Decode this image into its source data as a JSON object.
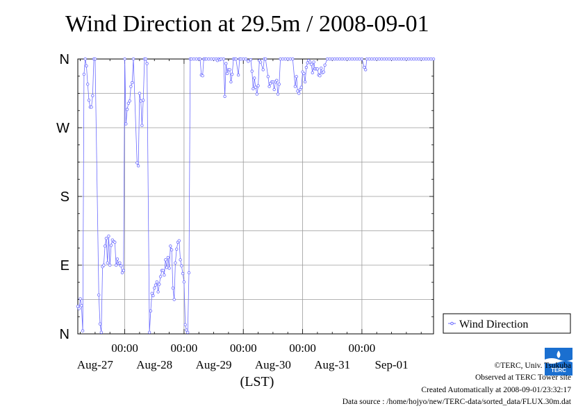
{
  "chart_data": {
    "type": "line",
    "title": "Wind Direction at 29.5m / 2008-09-01",
    "xlabel": "(LST)",
    "ylabel": "",
    "y_ticks": [
      "N",
      "W",
      "S",
      "E",
      "N"
    ],
    "y_tick_values": [
      360,
      270,
      180,
      90,
      0
    ],
    "ylim": [
      0,
      360
    ],
    "xlim": [
      0,
      144
    ],
    "x_time_ticks": [
      "00:00",
      "00:00",
      "00:00",
      "00:00",
      "00:00"
    ],
    "x_time_tick_hours": [
      19,
      43,
      67,
      91,
      115
    ],
    "x_date_labels": [
      "Aug-27",
      "Aug-28",
      "Aug-29",
      "Aug-30",
      "Aug-31",
      "Sep-01"
    ],
    "x_date_label_hours": [
      7,
      31,
      55,
      79,
      103,
      127
    ],
    "grid": true,
    "legend_position": "right",
    "series": [
      {
        "name": "Wind Direction",
        "color": "#6a6aff",
        "x_unit": "hours from start of window (2008-08-26 05:00 LST)",
        "y_unit": "degrees (0=N, 90=E, 180=S, 270=W)",
        "points": [
          [
            0,
            36
          ],
          [
            0.5,
            33
          ],
          [
            1,
            46
          ],
          [
            1.5,
            37
          ],
          [
            2,
            4
          ],
          [
            2.5,
            340
          ],
          [
            3,
            360
          ],
          [
            3.5,
            351
          ],
          [
            4,
            327
          ],
          [
            4.5,
            306
          ],
          [
            5,
            297
          ],
          [
            5.5,
            297
          ],
          [
            6,
            312
          ],
          [
            6.5,
            360
          ],
          [
            7,
            360
          ],
          [
            8.5,
            51
          ],
          [
            9,
            13
          ],
          [
            9.5,
            2
          ],
          [
            10,
            88
          ],
          [
            10.5,
            90
          ],
          [
            11,
            115
          ],
          [
            11.5,
            125
          ],
          [
            12,
            93
          ],
          [
            12.5,
            128
          ],
          [
            13,
            90
          ],
          [
            13.5,
            116
          ],
          [
            14,
            123
          ],
          [
            14.5,
            121
          ],
          [
            15,
            120
          ],
          [
            15.5,
            90
          ],
          [
            16,
            98
          ],
          [
            16.5,
            92
          ],
          [
            17,
            93
          ],
          [
            17.5,
            89
          ],
          [
            18,
            80
          ],
          [
            18.5,
            83
          ],
          [
            19,
            360
          ],
          [
            19.5,
            275
          ],
          [
            20,
            294
          ],
          [
            20.5,
            302
          ],
          [
            21,
            305
          ],
          [
            21.5,
            324
          ],
          [
            22,
            329
          ],
          [
            22.5,
            360
          ],
          [
            24,
            224
          ],
          [
            24.5,
            220
          ],
          [
            25,
            315
          ],
          [
            25.5,
            305
          ],
          [
            26,
            273
          ],
          [
            26.5,
            306
          ],
          [
            27,
            360
          ],
          [
            27.5,
            360
          ],
          [
            28,
            354
          ],
          [
            29,
            2
          ],
          [
            29.5,
            30
          ],
          [
            30,
            53
          ],
          [
            30.5,
            50
          ],
          [
            31,
            60
          ],
          [
            31.5,
            64
          ],
          [
            32,
            68
          ],
          [
            32.5,
            55
          ],
          [
            33,
            65
          ],
          [
            33.5,
            75
          ],
          [
            34,
            83
          ],
          [
            34.5,
            83
          ],
          [
            35,
            77
          ],
          [
            35.5,
            97
          ],
          [
            36,
            87
          ],
          [
            36.5,
            100
          ],
          [
            37,
            86
          ],
          [
            37.5,
            115
          ],
          [
            38,
            110
          ],
          [
            38.5,
            60
          ],
          [
            39,
            45
          ],
          [
            39.5,
            93
          ],
          [
            40,
            111
          ],
          [
            40.5,
            120
          ],
          [
            41,
            122
          ],
          [
            41.5,
            97
          ],
          [
            42,
            89
          ],
          [
            42.5,
            79
          ],
          [
            43,
            68
          ],
          [
            43.5,
            12
          ],
          [
            44,
            5
          ],
          [
            44.5,
            2
          ],
          [
            45,
            80
          ],
          [
            45.5,
            360
          ],
          [
            46,
            360
          ],
          [
            47,
            360
          ],
          [
            48,
            360
          ],
          [
            48.5,
            374
          ],
          [
            49,
            360
          ],
          [
            49.5,
            360
          ],
          [
            50,
            339
          ],
          [
            50.5,
            338
          ],
          [
            51,
            360
          ],
          [
            51.5,
            360
          ],
          [
            52,
            360
          ],
          [
            53,
            360
          ],
          [
            54,
            360
          ],
          [
            55,
            360
          ],
          [
            56,
            360
          ],
          [
            56.5,
            358
          ],
          [
            57,
            360
          ],
          [
            57.5,
            359
          ],
          [
            58,
            360
          ],
          [
            59,
            360
          ],
          [
            59.5,
            311
          ],
          [
            60,
            354
          ],
          [
            60.5,
            341
          ],
          [
            61,
            346
          ],
          [
            61.5,
            346
          ],
          [
            62,
            330
          ],
          [
            62.5,
            340
          ],
          [
            63,
            360
          ],
          [
            63.5,
            360
          ],
          [
            64,
            360
          ],
          [
            65,
            339
          ],
          [
            65.5,
            360
          ],
          [
            66,
            360
          ],
          [
            67,
            360
          ],
          [
            68,
            360
          ],
          [
            69,
            357
          ],
          [
            70,
            359
          ],
          [
            70.5,
            344
          ],
          [
            71,
            321
          ],
          [
            71.5,
            335
          ],
          [
            72,
            323
          ],
          [
            72.5,
            314
          ],
          [
            73,
            325
          ],
          [
            73.5,
            358
          ],
          [
            74,
            356
          ],
          [
            75,
            346
          ],
          [
            75.5,
            360
          ],
          [
            76,
            360
          ],
          [
            77,
            337
          ],
          [
            77.5,
            324
          ],
          [
            78,
            328
          ],
          [
            78.5,
            330
          ],
          [
            79,
            330
          ],
          [
            79.5,
            320
          ],
          [
            80,
            330
          ],
          [
            80.5,
            332
          ],
          [
            81,
            314
          ],
          [
            81.5,
            327
          ],
          [
            82,
            360
          ],
          [
            83,
            360
          ],
          [
            84,
            360
          ],
          [
            85,
            360
          ],
          [
            86,
            360
          ],
          [
            87,
            360
          ],
          [
            88,
            324
          ],
          [
            88.5,
            337
          ],
          [
            89,
            318
          ],
          [
            89.5,
            315
          ],
          [
            90,
            320
          ],
          [
            90.5,
            323
          ],
          [
            91,
            343
          ],
          [
            91.5,
            341
          ],
          [
            92,
            330
          ],
          [
            92.5,
            349
          ],
          [
            93,
            355
          ],
          [
            93.5,
            358
          ],
          [
            94,
            356
          ],
          [
            94.5,
            353
          ],
          [
            95,
            342
          ],
          [
            95.5,
            356
          ],
          [
            96,
            347
          ],
          [
            96.5,
            347
          ],
          [
            97,
            347
          ],
          [
            97.5,
            339
          ],
          [
            98,
            338
          ],
          [
            98.5,
            348
          ],
          [
            99,
            342
          ],
          [
            99.5,
            343
          ],
          [
            100,
            352
          ],
          [
            101,
            360
          ],
          [
            102,
            360
          ],
          [
            103,
            360
          ],
          [
            104,
            360
          ],
          [
            105,
            360
          ],
          [
            106,
            360
          ],
          [
            107,
            360
          ],
          [
            108,
            360
          ],
          [
            109,
            360
          ],
          [
            110,
            360
          ],
          [
            111,
            360
          ],
          [
            112,
            360
          ],
          [
            113,
            360
          ],
          [
            114,
            360
          ],
          [
            115,
            360
          ],
          [
            116,
            349
          ],
          [
            116.5,
            346
          ],
          [
            117,
            360
          ],
          [
            118,
            360
          ],
          [
            119,
            360
          ],
          [
            120,
            360
          ],
          [
            121,
            360
          ],
          [
            122,
            360
          ],
          [
            123,
            360
          ],
          [
            124,
            360
          ],
          [
            125,
            360
          ],
          [
            126,
            360
          ],
          [
            127,
            360
          ],
          [
            128,
            360
          ],
          [
            129,
            360
          ],
          [
            130,
            360
          ],
          [
            131,
            360
          ],
          [
            132,
            360
          ],
          [
            133,
            360
          ],
          [
            134,
            360
          ],
          [
            135,
            360
          ],
          [
            136,
            360
          ],
          [
            137,
            360
          ],
          [
            138,
            360
          ],
          [
            139,
            360
          ],
          [
            140,
            360
          ],
          [
            141,
            360
          ],
          [
            142,
            360
          ],
          [
            143,
            360
          ],
          [
            144,
            360
          ]
        ]
      }
    ]
  },
  "credits": {
    "copyright": "©TERC, Univ. Tsukuba",
    "observed": "Observed at TERC Tower site",
    "created": "Created Automatically at 2008-09-01/23:32:17",
    "source": "Data source : /home/hojyo/new/TERC-data/sorted_data/FLUX.30m.dat"
  },
  "logo": {
    "text": "TERC",
    "color": "#1a6fd0"
  }
}
